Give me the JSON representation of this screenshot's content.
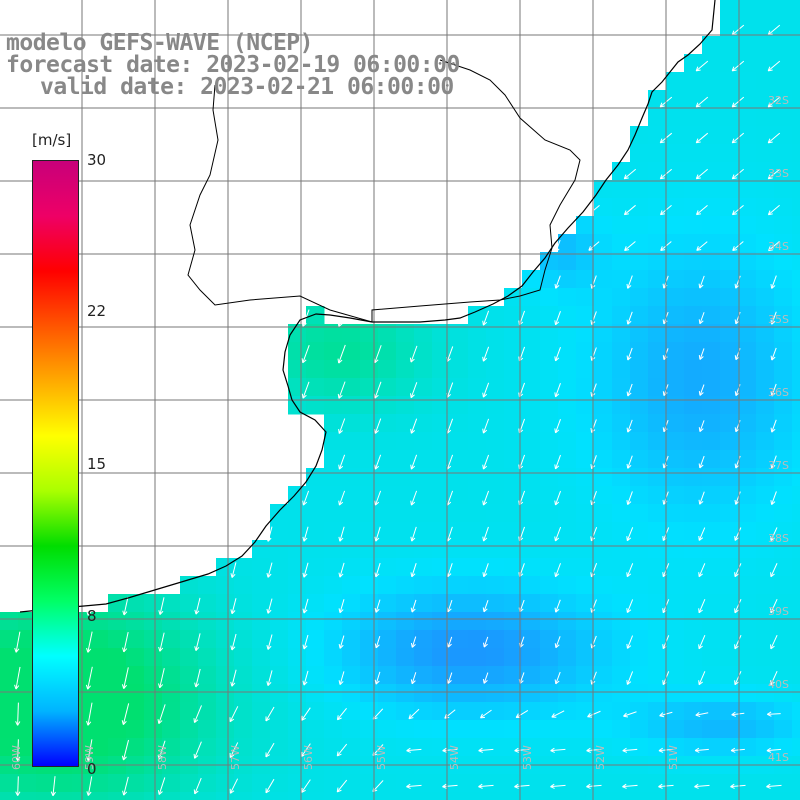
{
  "title": {
    "model": "modelo GEFS-WAVE (NCEP)",
    "forecast": "forecast date: 2023-02-19 06:00:00",
    "valid": "valid date: 2023-02-21 06:00:00"
  },
  "colorbar": {
    "unit": "[m/s]",
    "min": 0,
    "max": 30,
    "tick_labels": [
      "30",
      "22",
      "15",
      "8",
      "0"
    ],
    "tick_values": [
      30,
      22,
      15,
      8,
      0
    ],
    "colors": [
      "#0000ff",
      "#00b4ff",
      "#00ffff",
      "#00ff66",
      "#00dd00",
      "#aaff00",
      "#ffff00",
      "#ffaa00",
      "#ff5500",
      "#ff0000",
      "#ee0066",
      "#c8007a"
    ]
  },
  "map": {
    "lat_labels": [
      "32S",
      "33S",
      "34S",
      "35S",
      "36S",
      "37S",
      "38S",
      "39S",
      "40S",
      "41S"
    ],
    "lon_labels": [
      "60W",
      "59W",
      "58W",
      "57W",
      "56W",
      "55W",
      "54W",
      "53W",
      "52W",
      "51W"
    ],
    "layer": "wind speed and direction",
    "ocean_color_low": "#1e8cff",
    "ocean_color_mid": "#00e1ff",
    "ocean_color_high": "#00e070",
    "land_color": "#ffffff",
    "coast_color": "#000000",
    "grid_color": "#777777",
    "arrow_color": "#ffffff"
  }
}
